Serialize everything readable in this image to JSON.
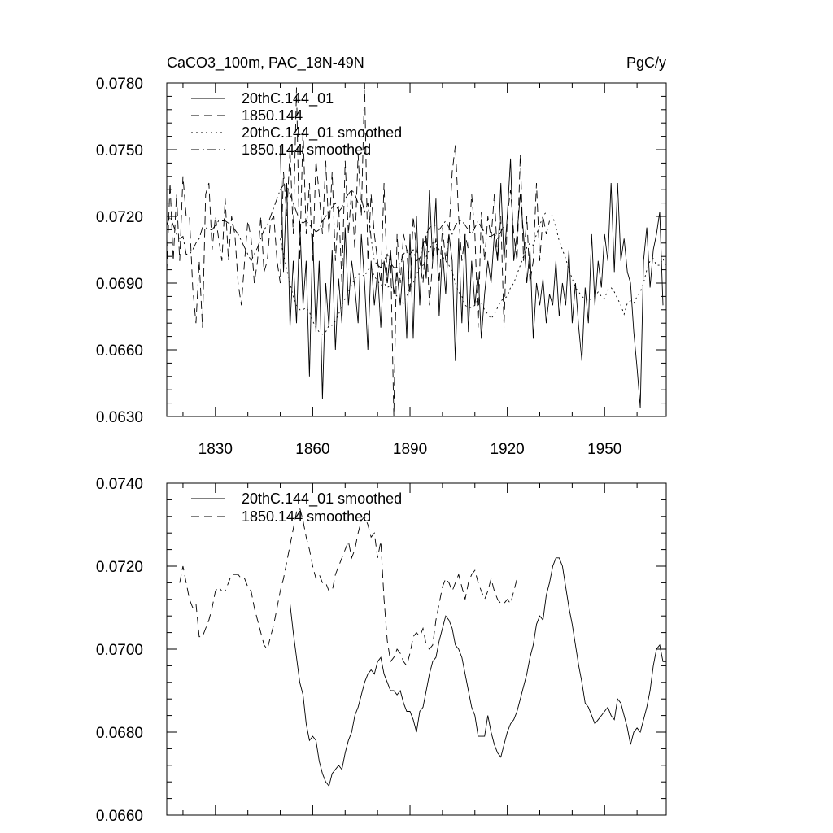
{
  "chart_data": [
    {
      "type": "line",
      "title_left": "CaCO3_100m, PAC_18N-49N",
      "title_right": "PgC/y",
      "xlim": [
        1815,
        1969
      ],
      "ylim": [
        0.063,
        0.078
      ],
      "x_ticks": [
        1830,
        1860,
        1890,
        1920,
        1950
      ],
      "x_tick_labels": [
        "1830",
        "1860",
        "1890",
        "1920",
        "1950"
      ],
      "y_ticks": [
        0.063,
        0.066,
        0.069,
        0.072,
        0.075,
        0.078
      ],
      "y_tick_labels": [
        "0.0630",
        "0.0660",
        "0.0690",
        "0.0720",
        "0.0750",
        "0.0780"
      ],
      "legend": [
        "20thC.144_01",
        "1850.144",
        "20thC.144_01 smoothed",
        "1850.144 smoothed"
      ],
      "series": [
        {
          "name": "20thC.144_01",
          "style": "solid",
          "x_start": 1850,
          "values": [
            0.0752,
            0.0695,
            0.0735,
            0.067,
            0.07,
            0.0672,
            0.0718,
            0.068,
            0.07,
            0.0648,
            0.0712,
            0.0668,
            0.07,
            0.0638,
            0.069,
            0.067,
            0.0705,
            0.066,
            0.0692,
            0.0672,
            0.0715,
            0.068,
            0.07,
            0.0688,
            0.0672,
            0.0712,
            0.069,
            0.066,
            0.07,
            0.068,
            0.0695,
            0.067,
            0.07,
            0.069,
            0.0705,
            0.0685,
            0.0695,
            0.068,
            0.07,
            0.0665,
            0.0712,
            0.0665,
            0.072,
            0.068,
            0.071,
            0.0692,
            0.0732,
            0.07,
            0.0728,
            0.0675,
            0.0705,
            0.0685,
            0.0712,
            0.07,
            0.0655,
            0.071,
            0.0672,
            0.0712,
            0.0668,
            0.07,
            0.068,
            0.0695,
            0.0665,
            0.0685,
            0.07,
            0.069,
            0.0712,
            0.07,
            0.0735,
            0.07,
            0.072,
            0.0746,
            0.07,
            0.0712,
            0.073,
            0.0712,
            0.069,
            0.0705,
            0.0665,
            0.069,
            0.068,
            0.0692,
            0.0672,
            0.0685,
            0.068,
            0.07,
            0.0675,
            0.069,
            0.068,
            0.0705,
            0.0672,
            0.069,
            0.067,
            0.0655,
            0.0688,
            0.0672,
            0.0712,
            0.068,
            0.07,
            0.0688,
            0.0712,
            0.07,
            0.0735,
            0.0695,
            0.0735,
            0.07,
            0.071,
            0.0695,
            0.069,
            0.0668,
            0.0652,
            0.0634,
            0.07,
            0.0715,
            0.0688,
            0.0705,
            0.0712,
            0.0722,
            0.068
          ]
        },
        {
          "name": "1850.144",
          "style": "dash",
          "x_start": 1815,
          "values": [
            0.0695,
            0.0735,
            0.07,
            0.073,
            0.07,
            0.0738,
            0.072,
            0.072,
            0.0688,
            0.0672,
            0.07,
            0.067,
            0.073,
            0.0735,
            0.0705,
            0.072,
            0.071,
            0.07,
            0.0728,
            0.07,
            0.072,
            0.0712,
            0.069,
            0.068,
            0.07,
            0.0718,
            0.071,
            0.069,
            0.07,
            0.072,
            0.0695,
            0.07,
            0.0718,
            0.072,
            0.07,
            0.069,
            0.074,
            0.072,
            0.075,
            0.0712,
            0.0778,
            0.07,
            0.076,
            0.0712,
            0.0735,
            0.07,
            0.0745,
            0.073,
            0.0712,
            0.0745,
            0.0712,
            0.074,
            0.07,
            0.0725,
            0.069,
            0.0745,
            0.0712,
            0.0732,
            0.0705,
            0.0748,
            0.072,
            0.078,
            0.07,
            0.073,
            0.0712,
            0.07,
            0.069,
            0.0735,
            0.069,
            0.0705,
            0.063,
            0.0712,
            0.069,
            0.0712,
            0.0705,
            0.0685,
            0.072,
            0.0705,
            0.07,
            0.069,
            0.0712,
            0.068,
            0.07,
            0.071,
            0.069,
            0.0715,
            0.07,
            0.0712,
            0.074,
            0.0752,
            0.072,
            0.07,
            0.0712,
            0.0705,
            0.073,
            0.0712,
            0.067,
            0.0722,
            0.07,
            0.072,
            0.071,
            0.073,
            0.07,
            0.072,
            0.067,
            0.072,
            0.0732,
            0.0712,
            0.07,
            0.0748,
            0.07,
            0.072,
            0.069,
            0.07,
            0.0735,
            0.07,
            0.072,
            0.0712,
            0.0718
          ]
        },
        {
          "name": "20thC.144_01 smoothed",
          "style": "dot",
          "x_start": 1850,
          "values": [
            0.071,
            0.0703,
            0.0696,
            0.069,
            0.0684,
            0.068,
            0.0678,
            0.0678,
            0.0679,
            0.0677,
            0.0673,
            0.067,
            0.0668,
            0.0667,
            0.0668,
            0.0671,
            0.0671,
            0.0673,
            0.0676,
            0.068,
            0.0683,
            0.0686,
            0.0689,
            0.0692,
            0.0694,
            0.0694,
            0.0693,
            0.0696,
            0.0697,
            0.0693,
            0.0691,
            0.0689,
            0.069,
            0.0688,
            0.0689,
            0.0686,
            0.0684,
            0.0683,
            0.0681,
            0.0684,
            0.0688,
            0.069,
            0.0694,
            0.0697,
            0.0698,
            0.0702,
            0.0705,
            0.0708,
            0.0708,
            0.0705,
            0.0702,
            0.07,
            0.0698,
            0.0695,
            0.069,
            0.0686,
            0.0684,
            0.068,
            0.0679,
            0.0679,
            0.068,
            0.0683,
            0.0681,
            0.0678,
            0.0676,
            0.0674,
            0.0676,
            0.0679,
            0.0682,
            0.0683,
            0.0684,
            0.0688,
            0.069,
            0.0694,
            0.0698,
            0.0702,
            0.0706,
            0.0708,
            0.0707,
            0.0712,
            0.0716,
            0.072,
            0.0722,
            0.0722,
            0.072,
            0.0715,
            0.0709,
            0.0705,
            0.0701,
            0.0696,
            0.0692,
            0.0688,
            0.0686,
            0.0684,
            0.0683,
            0.0682,
            0.0683,
            0.0684,
            0.0686,
            0.0684,
            0.0683,
            0.0687,
            0.0688,
            0.0686,
            0.0683,
            0.068,
            0.0676,
            0.0681,
            0.0682,
            0.0681,
            0.0684,
            0.0686,
            0.069,
            0.0696,
            0.07,
            0.0701,
            0.0698,
            0.0698,
            0.0701,
            0.0697,
            0.0692,
            0.0687,
            0.0678,
            0.0675,
            0.0675,
            0.068,
            0.068,
            0.0685,
            0.069,
            0.0697,
            0.0702
          ]
        },
        {
          "name": "1850.144 smoothed",
          "style": "dashdot",
          "x_start": 1815,
          "values": [
            0.0716,
            0.072,
            0.0716,
            0.0712,
            0.071,
            0.0711,
            0.0703,
            0.0703,
            0.0705,
            0.0708,
            0.071,
            0.0715,
            0.0715,
            0.0714,
            0.0714,
            0.0716,
            0.0718,
            0.0718,
            0.0718,
            0.0717,
            0.0717,
            0.0714,
            0.0712,
            0.0709,
            0.0706,
            0.0703,
            0.07,
            0.0703,
            0.0706,
            0.071,
            0.0714,
            0.0716,
            0.072,
            0.0724,
            0.0728,
            0.0732,
            0.0734,
            0.0734,
            0.073,
            0.0726,
            0.0722,
            0.0718,
            0.0717,
            0.0718,
            0.0716,
            0.0715,
            0.0713,
            0.0714,
            0.0718,
            0.072,
            0.0722,
            0.0724,
            0.0726,
            0.0722,
            0.0724,
            0.0728,
            0.073,
            0.0732,
            0.073,
            0.0726,
            0.0728,
            0.0722,
            0.0726,
            0.071,
            0.07,
            0.0698,
            0.0697,
            0.07,
            0.0703,
            0.0699,
            0.0697,
            0.0697,
            0.0699,
            0.0703,
            0.0705,
            0.0703,
            0.0705,
            0.07,
            0.0701,
            0.0707,
            0.0712,
            0.0715,
            0.0716,
            0.0716,
            0.0714,
            0.0716,
            0.0718,
            0.0715,
            0.0712,
            0.0716,
            0.0718,
            0.0718,
            0.0716,
            0.0714,
            0.0712,
            0.0715,
            0.0718,
            0.0715,
            0.0713,
            0.0711,
            0.0711,
            0.0712,
            0.071,
            0.0713,
            0.0716
          ]
        }
      ]
    },
    {
      "type": "line",
      "xlim": [
        1815,
        1969
      ],
      "ylim": [
        0.066,
        0.074
      ],
      "x_ticks": [
        1830,
        1860,
        1890,
        1920,
        1950
      ],
      "y_ticks": [
        0.066,
        0.068,
        0.07,
        0.072,
        0.074
      ],
      "y_tick_labels": [
        "0.0660",
        "0.0680",
        "0.0700",
        "0.0720",
        "0.0740"
      ],
      "legend": [
        "20thC.144_01 smoothed",
        "1850.144 smoothed"
      ],
      "series": [
        {
          "name": "20thC.144_01 smoothed",
          "style": "solid",
          "x_start": 1853,
          "values": [
            0.0711,
            0.0704,
            0.0698,
            0.0692,
            0.0689,
            0.0682,
            0.0678,
            0.0679,
            0.0678,
            0.0673,
            0.067,
            0.0668,
            0.0667,
            0.067,
            0.0671,
            0.0672,
            0.0671,
            0.0675,
            0.0678,
            0.068,
            0.0684,
            0.0686,
            0.0689,
            0.0692,
            0.0694,
            0.0695,
            0.0694,
            0.0697,
            0.0698,
            0.0694,
            0.0692,
            0.069,
            0.069,
            0.0689,
            0.069,
            0.0687,
            0.0685,
            0.0685,
            0.0683,
            0.068,
            0.0685,
            0.0686,
            0.069,
            0.0694,
            0.0697,
            0.0698,
            0.0702,
            0.0705,
            0.0708,
            0.0707,
            0.0705,
            0.0701,
            0.07,
            0.0698,
            0.0694,
            0.069,
            0.0686,
            0.0684,
            0.0679,
            0.0679,
            0.0679,
            0.0684,
            0.068,
            0.0677,
            0.0675,
            0.0674,
            0.0677,
            0.068,
            0.0682,
            0.0683,
            0.0685,
            0.0688,
            0.0691,
            0.0694,
            0.0698,
            0.0701,
            0.0706,
            0.0708,
            0.0707,
            0.0713,
            0.0716,
            0.072,
            0.0722,
            0.0722,
            0.072,
            0.0715,
            0.071,
            0.0706,
            0.0701,
            0.0696,
            0.0692,
            0.0687,
            0.0686,
            0.0684,
            0.0682,
            0.0683,
            0.0684,
            0.0685,
            0.0686,
            0.0684,
            0.0683,
            0.0688,
            0.0687,
            0.0684,
            0.0681,
            0.0677,
            0.068,
            0.0681,
            0.068,
            0.0683,
            0.0686,
            0.069,
            0.0696,
            0.07,
            0.0701,
            0.0697,
            0.0697,
            0.07,
            0.0697,
            0.0692,
            0.0686,
            0.0675,
            0.0675,
            0.0679,
            0.0679,
            0.0684,
            0.069,
            0.0697,
            0.0704
          ]
        },
        {
          "name": "1850.144 smoothed",
          "style": "dash",
          "x_start": 1819,
          "values": [
            0.0716,
            0.072,
            0.0716,
            0.0712,
            0.071,
            0.0711,
            0.0703,
            0.0703,
            0.0705,
            0.0707,
            0.071,
            0.0714,
            0.0715,
            0.0714,
            0.0714,
            0.0716,
            0.0718,
            0.0718,
            0.0718,
            0.0717,
            0.0717,
            0.0715,
            0.0714,
            0.071,
            0.0707,
            0.0704,
            0.0701,
            0.07,
            0.0703,
            0.0706,
            0.071,
            0.0714,
            0.0717,
            0.0721,
            0.0725,
            0.0729,
            0.0733,
            0.0734,
            0.0731,
            0.0727,
            0.0724,
            0.072,
            0.0717,
            0.0718,
            0.0716,
            0.0716,
            0.0714,
            0.0714,
            0.0718,
            0.072,
            0.0722,
            0.0724,
            0.0726,
            0.0722,
            0.0724,
            0.0728,
            0.0731,
            0.0732,
            0.073,
            0.0727,
            0.0728,
            0.0722,
            0.0726,
            0.0712,
            0.0702,
            0.0697,
            0.0698,
            0.07,
            0.0699,
            0.0697,
            0.0696,
            0.0699,
            0.0703,
            0.0704,
            0.0703,
            0.0705,
            0.0701,
            0.07,
            0.0701,
            0.0707,
            0.0711,
            0.0715,
            0.0717,
            0.0716,
            0.0714,
            0.0716,
            0.0718,
            0.0715,
            0.0712,
            0.0716,
            0.0718,
            0.0719,
            0.0716,
            0.0714,
            0.0712,
            0.0714,
            0.0717,
            0.0714,
            0.0712,
            0.0711,
            0.0711,
            0.0712,
            0.0711,
            0.0714,
            0.0717
          ]
        }
      ]
    }
  ]
}
